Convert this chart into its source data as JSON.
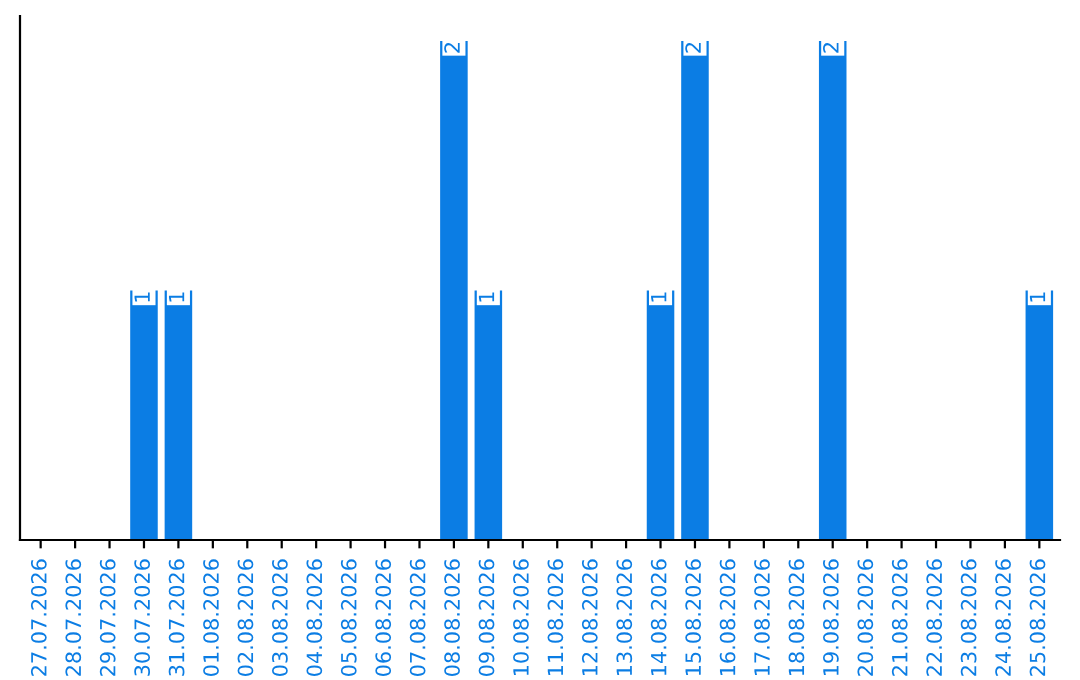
{
  "chart_data": {
    "type": "bar",
    "categories": [
      "27.07.2026",
      "28.07.2026",
      "29.07.2026",
      "30.07.2026",
      "31.07.2026",
      "01.08.2026",
      "02.08.2026",
      "03.08.2026",
      "04.08.2026",
      "05.08.2026",
      "06.08.2026",
      "07.08.2026",
      "08.08.2026",
      "09.08.2026",
      "10.08.2026",
      "11.08.2026",
      "12.08.2026",
      "13.08.2026",
      "14.08.2026",
      "15.08.2026",
      "16.08.2026",
      "17.08.2026",
      "18.08.2026",
      "19.08.2026",
      "20.08.2026",
      "21.08.2026",
      "22.08.2026",
      "23.08.2026",
      "24.08.2026",
      "25.08.2026"
    ],
    "values": [
      0,
      0,
      0,
      1,
      1,
      0,
      0,
      0,
      0,
      0,
      0,
      0,
      2,
      1,
      0,
      0,
      0,
      0,
      1,
      2,
      0,
      0,
      0,
      2,
      0,
      0,
      0,
      0,
      0,
      1
    ],
    "value_labels": [
      null,
      null,
      null,
      "1",
      "1",
      null,
      null,
      null,
      null,
      null,
      null,
      null,
      "2",
      "1",
      null,
      null,
      null,
      null,
      "1",
      "2",
      null,
      null,
      null,
      "2",
      null,
      null,
      null,
      null,
      null,
      "1"
    ],
    "color": "#0b7de4",
    "ylim": [
      0,
      2.1
    ],
    "tick_labels": "x",
    "grid": false,
    "legend": false
  }
}
